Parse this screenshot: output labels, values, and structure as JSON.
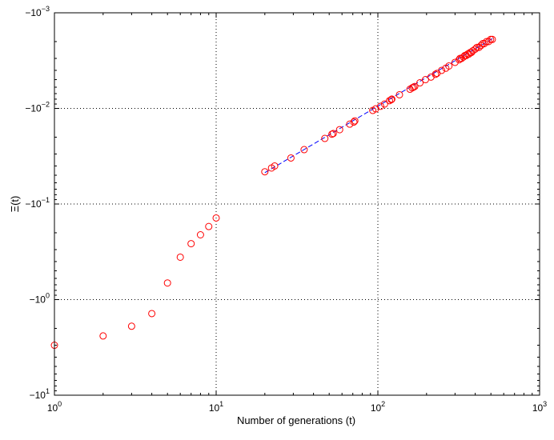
{
  "chart_data": {
    "type": "scatter",
    "title": "",
    "xlabel": "Number of generations (t)",
    "ylabel": "Ξ(t)",
    "x_scale": "log",
    "y_scale": "log",
    "y_sign": "negative",
    "xlim": [
      1,
      1000
    ],
    "ylim": [
      -0.001,
      -10
    ],
    "x_ticks": [
      {
        "base": "10",
        "exp": "0",
        "value": 1
      },
      {
        "base": "10",
        "exp": "1",
        "value": 10
      },
      {
        "base": "10",
        "exp": "2",
        "value": 100
      },
      {
        "base": "10",
        "exp": "3",
        "value": 1000
      }
    ],
    "y_ticks": [
      {
        "base": "−10",
        "exp": "−3",
        "value": -0.001
      },
      {
        "base": "−10",
        "exp": "−2",
        "value": -0.01
      },
      {
        "base": "−10",
        "exp": "−1",
        "value": -0.1
      },
      {
        "base": "−10",
        "exp": "0",
        "value": -1
      },
      {
        "base": "−10",
        "exp": "1",
        "value": -10
      }
    ],
    "grid": true,
    "colors": {
      "markers": "#ff0000",
      "fit_line": "#0000ff",
      "grid": "#000000"
    },
    "series": [
      {
        "marker": "circle-open",
        "x": [
          1,
          2,
          3,
          4,
          5,
          6,
          7,
          8,
          9,
          10,
          20,
          22,
          23,
          29,
          35,
          47,
          52,
          53,
          58,
          67,
          71,
          72,
          93,
          97,
          104,
          110,
          118,
          121,
          122,
          136,
          158,
          163,
          166,
          169,
          182,
          197,
          213,
          227,
          232,
          248,
          263,
          275,
          300,
          318,
          322,
          329,
          338,
          345,
          352,
          359,
          366,
          372,
          379,
          386,
          400,
          410,
          422,
          434,
          445,
          456,
          470,
          484,
          498,
          510
        ],
        "y": [
          -3.0,
          -2.4,
          -1.9,
          -1.4,
          -0.67,
          -0.36,
          -0.26,
          -0.21,
          -0.172,
          -0.14,
          -0.046,
          -0.042,
          -0.04,
          -0.033,
          -0.027,
          -0.0206,
          -0.0186,
          -0.0183,
          -0.0167,
          -0.0146,
          -0.0139,
          -0.0135,
          -0.0105,
          -0.0101,
          -0.0095,
          -0.009,
          -0.0083,
          -0.0081,
          -0.008,
          -0.0072,
          -0.0063,
          -0.0061,
          -0.006,
          -0.0059,
          -0.0054,
          -0.005,
          -0.0047,
          -0.0044,
          -0.0043,
          -0.004,
          -0.0038,
          -0.0036,
          -0.0033,
          -0.0031,
          -0.003,
          -0.003,
          -0.0029,
          -0.0028,
          -0.0028,
          -0.0027,
          -0.0027,
          -0.0026,
          -0.0026,
          -0.0025,
          -0.0024,
          -0.0023,
          -0.0023,
          -0.0022,
          -0.0021,
          -0.0021,
          -0.002,
          -0.002,
          -0.0019,
          -0.0019
        ]
      },
      {
        "marker": "dashed-line",
        "x": [
          20,
          515
        ],
        "y": [
          -0.047,
          -0.00185
        ]
      }
    ]
  }
}
